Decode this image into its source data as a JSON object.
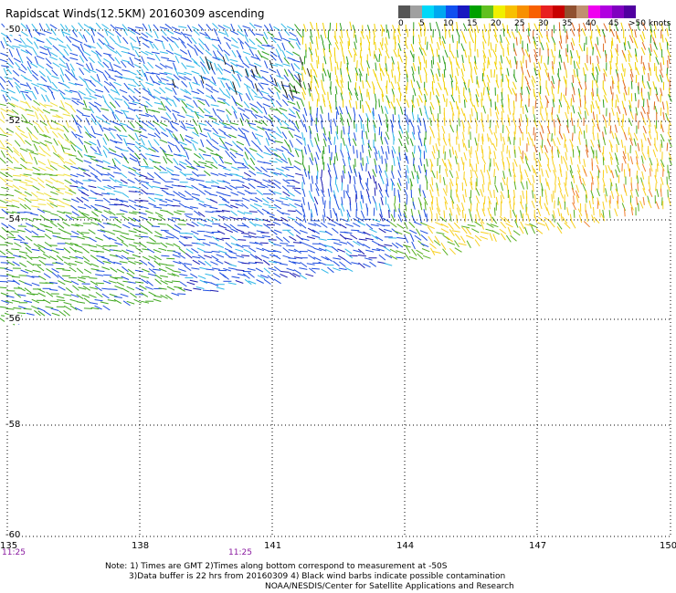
{
  "title": "Rapidscat Winds(12.5KM) 20160309 ascending",
  "colorbar": {
    "colors": [
      "#555555",
      "#a0a0a0",
      "#00d8f8",
      "#00a8f0",
      "#1050f0",
      "#1818c0",
      "#00a000",
      "#60c020",
      "#f0f000",
      "#f8c000",
      "#f89000",
      "#f86000",
      "#e82020",
      "#c80000",
      "#905030",
      "#c09070",
      "#f000f0",
      "#b000e0",
      "#8000c0",
      "#5000a0"
    ],
    "labels": [
      "0",
      "5",
      "10",
      "15",
      "20",
      "25",
      "30",
      "35",
      "40",
      "45",
      ">50 knots"
    ]
  },
  "map": {
    "lat_labels": [
      "-50",
      "-52",
      "-54",
      "-56",
      "-58",
      "-60"
    ],
    "lon_labels": [
      "135",
      "138",
      "141",
      "144",
      "147",
      "150"
    ],
    "lat_range": [
      -60,
      -50
    ],
    "lon_range": [
      135,
      150
    ]
  },
  "times": [
    "11:25",
    "11:25"
  ],
  "notes": {
    "line1": "Note: 1) Times are GMT 2)Times along bottom correspond to measurement at -50S",
    "line2": "3)Data buffer is 22 hrs from 20160309 4) Black wind barbs indicate possible contamination",
    "line3": "NOAA/NESDIS/Center for Satellite Applications and Research"
  }
}
